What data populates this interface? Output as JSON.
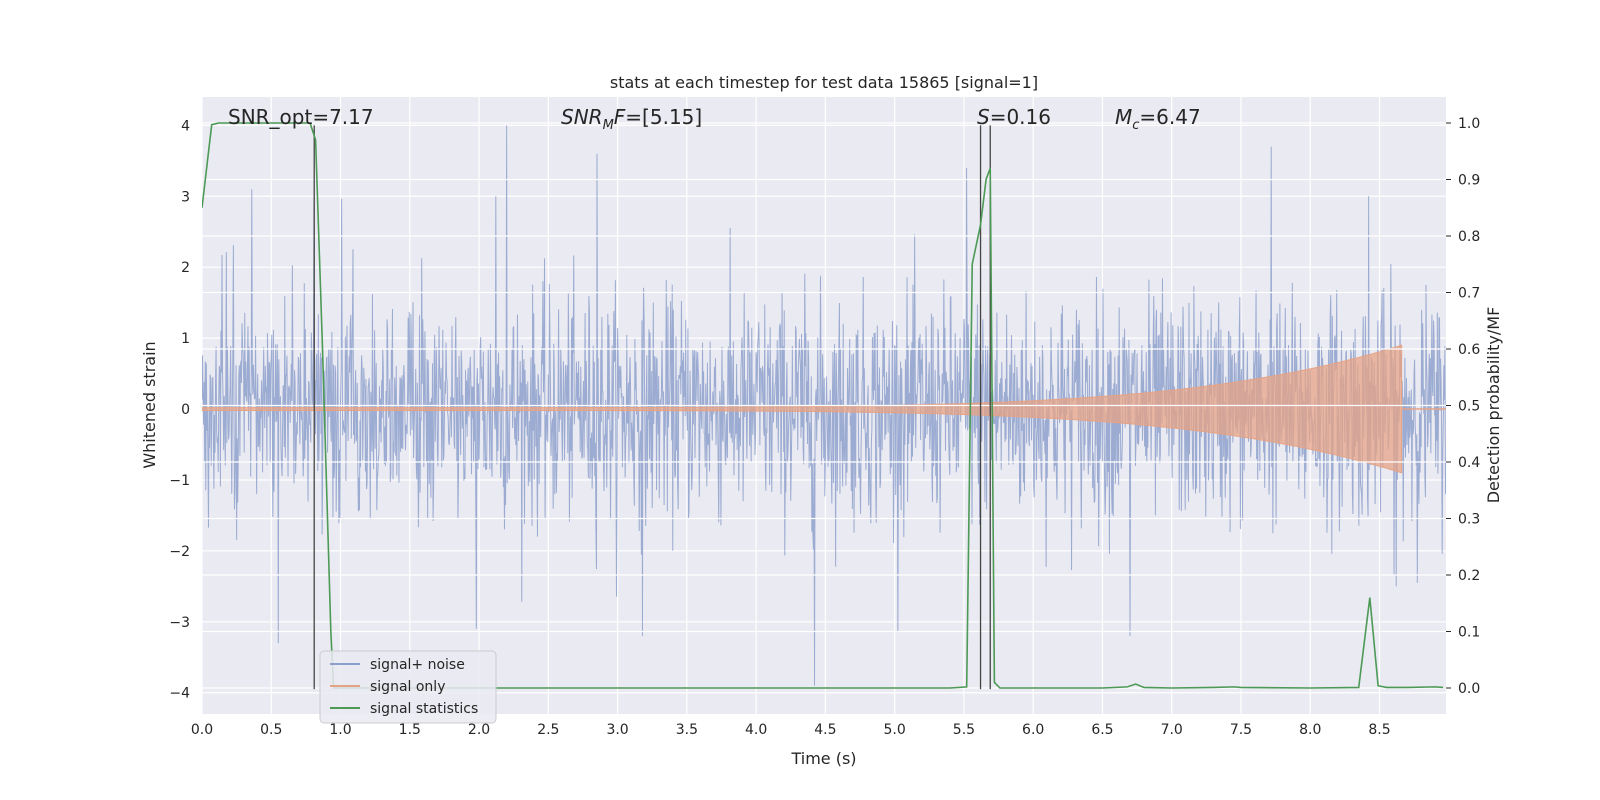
{
  "chart_data": {
    "type": "line",
    "title": "stats at each timestep for test data 15865 [signal=1]",
    "xlabel": "Time (s)",
    "ylabel_left": "Whitened strain",
    "ylabel_right": "Detection probability/MF",
    "xlim": [
      0.0,
      8.98
    ],
    "ylim_left": [
      -4.3,
      4.4
    ],
    "ylim_right": [
      -0.046,
      1.046
    ],
    "x_ticks": [
      0.0,
      0.5,
      1.0,
      1.5,
      2.0,
      2.5,
      3.0,
      3.5,
      4.0,
      4.5,
      5.0,
      5.5,
      6.0,
      6.5,
      7.0,
      7.5,
      8.0,
      8.5
    ],
    "x_tick_labels": [
      "0.0",
      "0.5",
      "1.0",
      "1.5",
      "2.0",
      "2.5",
      "3.0",
      "3.5",
      "4.0",
      "4.5",
      "5.0",
      "5.5",
      "6.0",
      "6.5",
      "7.0",
      "7.5",
      "8.0",
      "8.5"
    ],
    "y_ticks_left": [
      -4,
      -3,
      -2,
      -1,
      0,
      1,
      2,
      3,
      4
    ],
    "y_tick_labels_left": [
      "−4",
      "−3",
      "−2",
      "−1",
      "0",
      "1",
      "2",
      "3",
      "4"
    ],
    "y_ticks_right": [
      0.0,
      0.1,
      0.2,
      0.3,
      0.4,
      0.5,
      0.6,
      0.7,
      0.8,
      0.9,
      1.0
    ],
    "y_tick_labels_right": [
      "0.0",
      "0.1",
      "0.2",
      "0.3",
      "0.4",
      "0.5",
      "0.6",
      "0.7",
      "0.8",
      "0.9",
      "1.0"
    ],
    "grid": true,
    "legend_position": "lower-left",
    "annotations": {
      "snr_opt": "SNR_opt=7.17",
      "snr_mf_label": "SNR",
      "snr_mf_sub": "M",
      "snr_mf_rest": "F",
      "snr_mf_value": "=[5.15]",
      "s_label": "S",
      "s_value": "=0.16",
      "mc_label": "M",
      "mc_sub": "c",
      "mc_value": "=6.47"
    },
    "vertical_markers": [
      0.81,
      5.62,
      5.69
    ],
    "series": [
      {
        "name": "signal+ noise",
        "color": "#8da0cb",
        "axis": "left",
        "amplitude_std": 0.78,
        "peaks": [
          [
            0.36,
            3.1
          ],
          [
            0.55,
            -3.3
          ],
          [
            0.81,
            3.0
          ],
          [
            2.12,
            3.0
          ],
          [
            2.2,
            4.0
          ],
          [
            1.98,
            -3.1
          ],
          [
            2.85,
            3.6
          ],
          [
            3.18,
            -3.2
          ],
          [
            4.42,
            -3.9
          ],
          [
            5.52,
            3.4
          ],
          [
            6.7,
            -3.2
          ],
          [
            7.72,
            3.7
          ],
          [
            8.42,
            3.0
          ],
          [
            8.62,
            -2.5
          ]
        ]
      },
      {
        "name": "signal only",
        "color": "#e5a386",
        "axis": "left",
        "chirp_start_amplitude": 0.02,
        "chirp_end_time": 8.66,
        "chirp_end_amplitude": 0.9
      },
      {
        "name": "signal statistics",
        "color": "#4c9a55",
        "axis": "right",
        "x": [
          0.0,
          0.07,
          0.12,
          0.2,
          0.5,
          0.78,
          0.82,
          0.87,
          0.93,
          0.95,
          1.5,
          2.5,
          3.5,
          4.5,
          5.4,
          5.52,
          5.56,
          5.62,
          5.66,
          5.69,
          5.72,
          5.76,
          6.0,
          6.5,
          6.68,
          6.74,
          6.8,
          7.0,
          7.3,
          7.45,
          7.5,
          8.0,
          8.35,
          8.43,
          8.49,
          8.55,
          8.7,
          8.9,
          8.96
        ],
        "y": [
          0.85,
          0.997,
          1.0,
          1.0,
          1.0,
          1.0,
          0.97,
          0.6,
          0.1,
          0.0,
          0.0,
          0.0,
          0.0,
          0.0,
          0.0,
          0.002,
          0.75,
          0.82,
          0.9,
          0.92,
          0.01,
          0.0,
          0.0,
          0.0,
          0.002,
          0.007,
          0.001,
          0.0,
          0.001,
          0.002,
          0.001,
          0.0,
          0.001,
          0.16,
          0.004,
          0.001,
          0.001,
          0.002,
          0.001
        ]
      }
    ]
  }
}
